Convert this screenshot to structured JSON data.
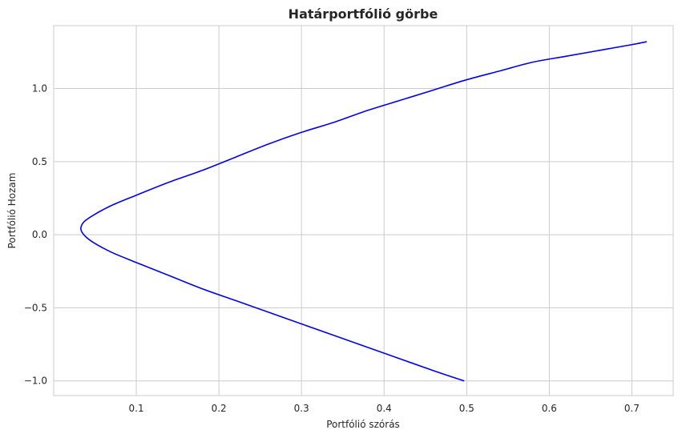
{
  "chart_data": {
    "type": "line",
    "title": "Határportfólió görbe",
    "xlabel": "Portfólió szórás",
    "ylabel": "Portfólió Hozam",
    "xlim": [
      0.0,
      0.75
    ],
    "ylim": [
      -1.1,
      1.43
    ],
    "grid": true,
    "x_ticks": [
      0.1,
      0.2,
      0.3,
      0.4,
      0.5,
      0.6,
      0.7
    ],
    "x_tick_labels": [
      "0.1",
      "0.2",
      "0.3",
      "0.4",
      "0.5",
      "0.6",
      "0.7"
    ],
    "y_ticks": [
      -1.0,
      -0.5,
      0.0,
      0.5,
      1.0
    ],
    "y_tick_labels": [
      "−1.0",
      "−0.5",
      "0.0",
      "0.5",
      "1.0"
    ],
    "series": [
      {
        "color": "#0000ee",
        "x": [
          0.497,
          0.46,
          0.42,
          0.38,
          0.34,
          0.3,
          0.26,
          0.22,
          0.18,
          0.14,
          0.1,
          0.07,
          0.05,
          0.04,
          0.034,
          0.033,
          0.037,
          0.05,
          0.07,
          0.1,
          0.14,
          0.18,
          0.22,
          0.26,
          0.3,
          0.34,
          0.38,
          0.42,
          0.46,
          0.5,
          0.54,
          0.58,
          0.62,
          0.66,
          0.7,
          0.718
        ],
        "y": [
          -1.0,
          -0.93,
          -0.85,
          -0.77,
          -0.69,
          -0.61,
          -0.53,
          -0.45,
          -0.37,
          -0.28,
          -0.19,
          -0.12,
          -0.06,
          -0.02,
          0.02,
          0.05,
          0.09,
          0.14,
          0.2,
          0.27,
          0.36,
          0.44,
          0.53,
          0.62,
          0.7,
          0.77,
          0.85,
          0.92,
          0.99,
          1.06,
          1.12,
          1.18,
          1.22,
          1.26,
          1.3,
          1.32
        ]
      }
    ]
  }
}
